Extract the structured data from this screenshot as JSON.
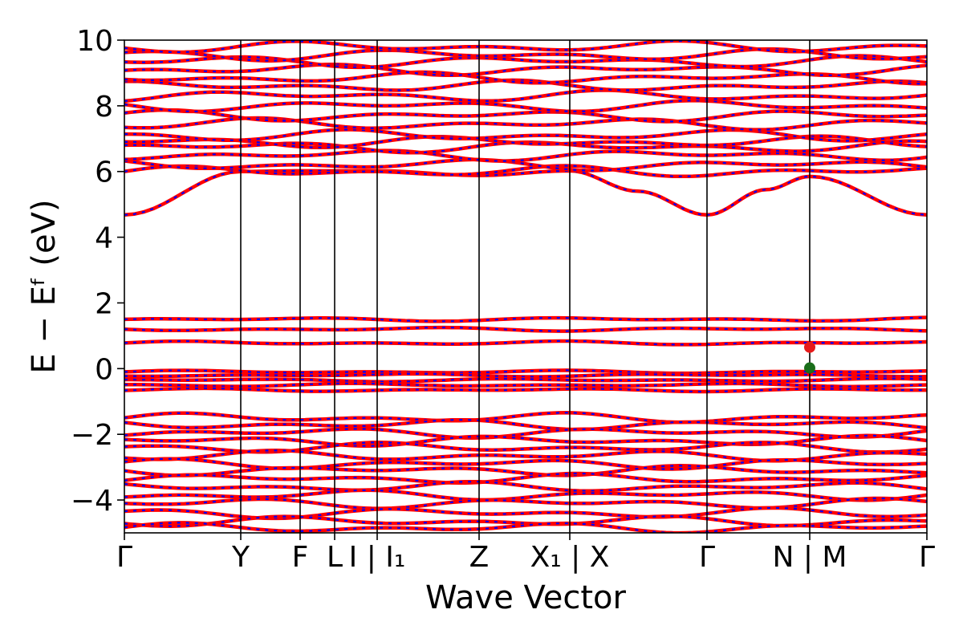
{
  "chart_data": {
    "type": "line",
    "title": "",
    "xlabel": "Wave Vector",
    "ylabel": "E − Eᶠ (eV)",
    "ylim": [
      -5,
      10
    ],
    "yticks": [
      -4,
      -2,
      0,
      2,
      4,
      6,
      8,
      10
    ],
    "ytick_labels": [
      "−4",
      "−2",
      "0",
      "2",
      "4",
      "6",
      "8",
      "10"
    ],
    "xlim": [
      0,
      1
    ],
    "kpoints": [
      {
        "label": "Γ",
        "x": 0.0
      },
      {
        "label": "Y",
        "x": 0.145
      },
      {
        "label": "F",
        "x": 0.219
      },
      {
        "label": "L",
        "x": 0.262
      },
      {
        "label": "I | I₁",
        "x": 0.315
      },
      {
        "label": "Z",
        "x": 0.442
      },
      {
        "label": "X₁ | X",
        "x": 0.555
      },
      {
        "label": "Γ",
        "x": 0.726
      },
      {
        "label": "N | M",
        "x": 0.854
      },
      {
        "label": "Γ",
        "x": 1.0
      }
    ],
    "grid": false,
    "legend": "none",
    "series_colors": {
      "spin_up": "#ff0000",
      "spin_down": "#0000ff"
    },
    "bands": {
      "conduction_lowest": {
        "x": [
          0.0,
          0.145,
          0.219,
          0.262,
          0.315,
          0.442,
          0.555,
          0.64,
          0.726,
          0.8,
          0.854,
          1.0
        ],
        "y": [
          4.68,
          6.0,
          6.02,
          6.02,
          6.02,
          5.88,
          6.02,
          5.4,
          4.68,
          5.45,
          5.85,
          4.68
        ]
      },
      "conduction_levels": [
        6.0,
        6.2,
        6.5,
        6.75,
        6.9,
        7.1,
        7.45,
        7.7,
        8.0,
        8.3,
        8.6,
        8.85,
        9.1,
        9.35,
        9.55,
        9.8
      ],
      "midgap_levels": [
        0.78,
        1.2,
        1.5
      ],
      "valence_top_levels": [
        -0.1,
        -0.2,
        -0.35,
        -0.5,
        -0.65
      ],
      "valence_levels": [
        -1.5,
        -1.7,
        -1.95,
        -2.2,
        -2.4,
        -2.65,
        -2.9,
        -3.1,
        -3.35,
        -3.6,
        -3.85,
        -4.1,
        -4.4,
        -4.65,
        -4.85
      ]
    },
    "markers": [
      {
        "name": "cbm",
        "x": 0.854,
        "y": 0.65,
        "color": "#e61a1a"
      },
      {
        "name": "vbm",
        "x": 0.854,
        "y": 0.02,
        "color": "#1a6e1a"
      }
    ]
  }
}
